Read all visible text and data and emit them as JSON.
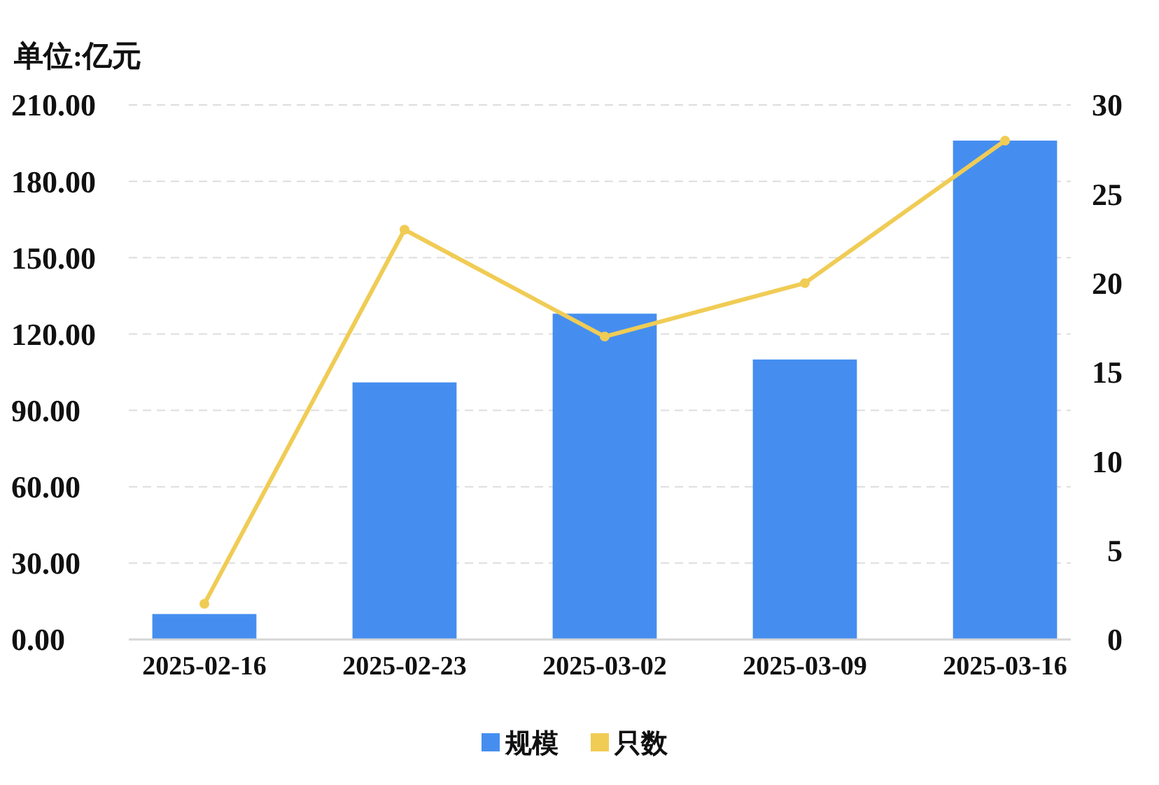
{
  "chart_data": {
    "type": "bar",
    "ylabel": "单位:亿元",
    "categories": [
      "2025-02-16",
      "2025-02-23",
      "2025-03-02",
      "2025-03-09",
      "2025-03-16"
    ],
    "series": [
      {
        "name": "规模",
        "color": "#458ef0",
        "values": [
          10,
          101,
          128,
          110,
          196
        ]
      },
      {
        "name": "只数",
        "type": "line",
        "axis": "y2",
        "color": "#f0cc55",
        "values": [
          2,
          23,
          17,
          20,
          28
        ]
      }
    ],
    "ylim": [
      0,
      210
    ],
    "yticks": [
      {
        "value": 0,
        "label": "0.00"
      },
      {
        "value": 30,
        "label": "30.00"
      },
      {
        "value": 60,
        "label": "60.00"
      },
      {
        "value": 90,
        "label": "90.00"
      },
      {
        "value": 120,
        "label": "120.00"
      },
      {
        "value": 150,
        "label": "150.00"
      },
      {
        "value": 180,
        "label": "180.00"
      },
      {
        "value": 210,
        "label": "210.00"
      }
    ],
    "y2lim": [
      0,
      30
    ],
    "y2ticks": [
      0,
      5,
      10,
      15,
      20,
      25,
      30
    ],
    "grid": "y",
    "legend": "bottom",
    "marker": "circle",
    "line_style": "solid"
  }
}
